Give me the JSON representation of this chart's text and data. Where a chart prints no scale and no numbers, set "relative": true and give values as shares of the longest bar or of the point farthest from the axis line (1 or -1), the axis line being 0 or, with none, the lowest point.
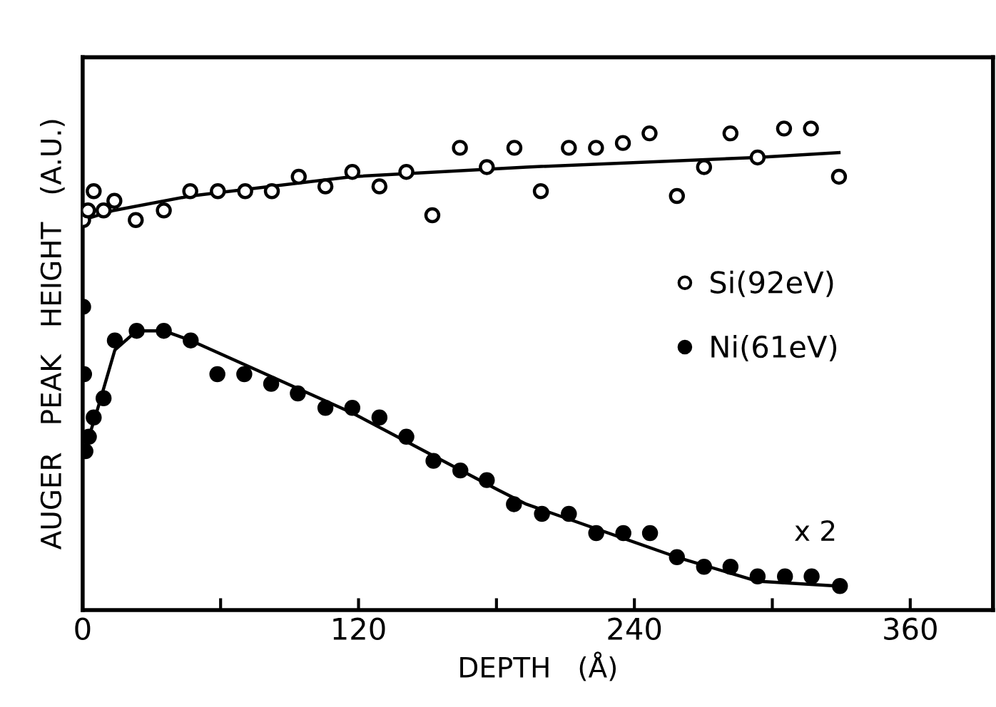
{
  "chart_data": {
    "type": "scatter",
    "relative": true,
    "xlabel": "DEPTH   (Å)",
    "ylabel": "AUGER   PEAK   HEIGHT   (A.U.)",
    "xlim": [
      0,
      396
    ],
    "xticks": [
      0,
      {
        "value": 60,
        "label": null
      },
      120,
      {
        "value": 180,
        "label": null
      },
      240,
      {
        "value": 300,
        "label": null
      },
      360
    ],
    "legend": "right",
    "grid": false,
    "annotations": [
      "x 2"
    ],
    "series": [
      {
        "name": "Si(92eV)",
        "color": "#ffffff",
        "marker": "circle",
        "x": [
          0.2,
          2.3,
          4.8,
          9.1,
          13.8,
          23.1,
          35.3,
          46.8,
          58.8,
          70.7,
          82.3,
          94.0,
          105.6,
          117.3,
          129.1,
          140.8,
          152.1,
          164.1,
          175.8,
          187.8,
          199.3,
          211.5,
          223.3,
          235.0,
          246.6,
          258.5,
          270.3,
          281.8,
          293.6,
          305.1,
          316.8,
          329.0
        ],
        "values": [
          0.81,
          0.83,
          0.87,
          0.83,
          0.85,
          0.81,
          0.83,
          0.87,
          0.87,
          0.87,
          0.87,
          0.9,
          0.88,
          0.91,
          0.88,
          0.91,
          0.82,
          0.96,
          0.92,
          0.96,
          0.87,
          0.96,
          0.96,
          0.97,
          0.99,
          0.86,
          0.92,
          0.99,
          0.94,
          1.0,
          1.0,
          0.9
        ]
      },
      {
        "name": "Ni(61eV)",
        "color": "#000000",
        "marker": "circle",
        "x": [
          0.2,
          0.6,
          1.2,
          2.7,
          4.8,
          9.1,
          14.0,
          23.5,
          35.3,
          47.0,
          58.6,
          70.3,
          82.0,
          93.6,
          105.6,
          117.3,
          129.1,
          140.8,
          152.6,
          164.3,
          175.8,
          187.6,
          199.8,
          211.5,
          223.4,
          235.2,
          246.8,
          258.5,
          270.3,
          281.8,
          293.6,
          305.5,
          317.1,
          329.4
        ],
        "values": [
          0.63,
          0.49,
          0.33,
          0.36,
          0.4,
          0.44,
          0.56,
          0.58,
          0.58,
          0.56,
          0.49,
          0.49,
          0.47,
          0.45,
          0.42,
          0.42,
          0.4,
          0.36,
          0.31,
          0.29,
          0.27,
          0.22,
          0.2,
          0.2,
          0.16,
          0.16,
          0.16,
          0.11,
          0.09,
          0.09,
          0.07,
          0.07,
          0.07,
          0.05
        ]
      },
      {
        "type": "line",
        "color": "#000000",
        "x": [
          0,
          13.6,
          47,
          117,
          193,
          293,
          329
        ],
        "values": [
          0.81,
          0.83,
          0.86,
          0.9,
          0.92,
          0.94,
          0.95
        ]
      },
      {
        "type": "line",
        "color": "#000000",
        "x": [
          1.2,
          2.7,
          5.4,
          9.1,
          14,
          23.5,
          35.3,
          47,
          117,
          180.6,
          193,
          258.5,
          293.6,
          329
        ],
        "values": [
          0.33,
          0.36,
          0.4,
          0.46,
          0.54,
          0.58,
          0.58,
          0.56,
          0.41,
          0.25,
          0.22,
          0.11,
          0.06,
          0.05
        ]
      }
    ]
  }
}
